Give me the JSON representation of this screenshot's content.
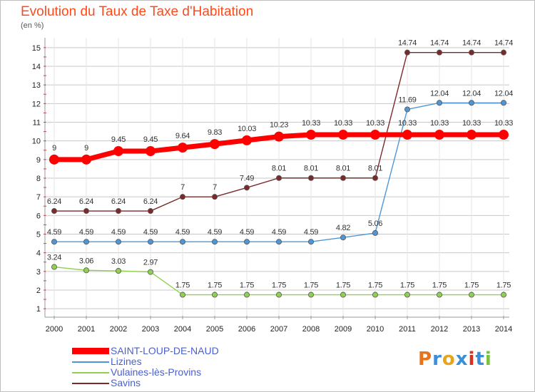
{
  "title": "Evolution du Taux de Taxe d'Habitation",
  "subtitle": "(en %)",
  "logo": {
    "text": "Proxiti",
    "colors": [
      "#e8731a",
      "#3b8fd8",
      "#e8a41a",
      "#3b8fd8",
      "#d8321a",
      "#3b8fd8",
      "#7ac142"
    ]
  },
  "colors": {
    "accent": "#ff4a1a",
    "grid": "#c8c8c8"
  },
  "chart_data": {
    "type": "line",
    "title": "Evolution du Taux de Taxe d'Habitation",
    "ylabel": "(en %)",
    "x": [
      2000,
      2001,
      2002,
      2003,
      2004,
      2005,
      2006,
      2007,
      2008,
      2009,
      2010,
      2011,
      2012,
      2013,
      2014
    ],
    "ylim": [
      1,
      15
    ],
    "yticks": [
      1,
      2,
      3,
      4,
      5,
      6,
      7,
      8,
      9,
      10,
      11,
      12,
      13,
      14,
      15
    ],
    "grid": true,
    "legend_position": "bottom-left",
    "series": [
      {
        "name": "SAINT-LOUP-DE-NAUD",
        "color": "#ff0000",
        "emphasis": true,
        "values": [
          9,
          9,
          9.45,
          9.45,
          9.64,
          9.83,
          10.03,
          10.23,
          10.33,
          10.33,
          10.33,
          10.33,
          10.33,
          10.33,
          10.33
        ],
        "labels": [
          "9",
          "9",
          "9.45",
          "9.45",
          "9.64",
          "9.83",
          "10.03",
          "10.23",
          "10.33",
          "10.33",
          "10.33",
          "10.33",
          "10.33",
          "10.33",
          "10.33"
        ]
      },
      {
        "name": "Lizines",
        "color": "#4f96d6",
        "values": [
          4.59,
          4.59,
          4.59,
          4.59,
          4.59,
          4.59,
          4.59,
          4.59,
          4.59,
          4.82,
          5.06,
          11.69,
          12.04,
          12.04,
          12.04
        ],
        "labels": [
          "4.59",
          "4.59",
          "4.59",
          "4.59",
          "4.59",
          "4.59",
          "4.59",
          "4.59",
          "4.59",
          "4.82",
          "5.06",
          "11.69",
          "12.04",
          "12.04",
          "12.04"
        ]
      },
      {
        "name": "Vulaines-lès-Provins",
        "color": "#8fd14f",
        "values": [
          3.24,
          3.06,
          3.03,
          2.97,
          1.75,
          1.75,
          1.75,
          1.75,
          1.75,
          1.75,
          1.75,
          1.75,
          1.75,
          1.75,
          1.75
        ],
        "labels": [
          "3.24",
          "3.06",
          "3.03",
          "2.97",
          "1.75",
          "1.75",
          "1.75",
          "1.75",
          "1.75",
          "1.75",
          "1.75",
          "1.75",
          "1.75",
          "1.75",
          "1.75"
        ]
      },
      {
        "name": "Savins",
        "color": "#7a2a2a",
        "values": [
          6.24,
          6.24,
          6.24,
          6.24,
          7,
          7,
          7.49,
          8.01,
          8.01,
          8.01,
          8.01,
          14.74,
          14.74,
          14.74,
          14.74
        ],
        "labels": [
          "6.24",
          "6.24",
          "6.24",
          "6.24",
          "7",
          "7",
          "7.49",
          "8.01",
          "8.01",
          "8.01",
          "8.01",
          "14.74",
          "14.74",
          "14.74",
          "14.74"
        ]
      }
    ]
  }
}
